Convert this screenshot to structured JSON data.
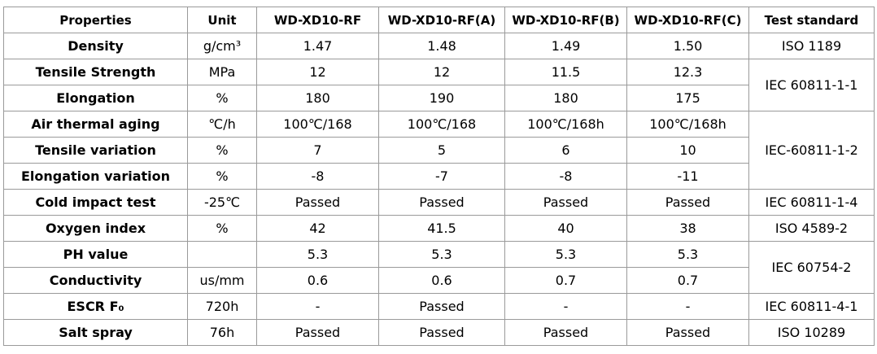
{
  "table": {
    "header": [
      "Properties",
      "Unit",
      "WD-XD10-RF",
      "WD-XD10-RF(A)",
      "WD-XD10-RF(B)",
      "WD-XD10-RF(C)",
      "Test standard"
    ],
    "rows": [
      [
        "Density",
        "g/cm³",
        "1.47",
        "1.48",
        "1.49",
        "1.50",
        "ISO 1189"
      ],
      [
        "Tensile Strength",
        "MPa",
        "12",
        "12",
        "11.5",
        "12.3",
        "IEC 60811-1-1"
      ],
      [
        "Elongation",
        "%",
        "180",
        "190",
        "180",
        "175",
        null
      ],
      [
        "Air thermal aging",
        "℃/h",
        "100℃/168",
        "100℃/168",
        "100℃/168h",
        "100℃/168h",
        "IEC-60811-1-2"
      ],
      [
        "Tensile variation",
        "%",
        "7",
        "5",
        "6",
        "10",
        null
      ],
      [
        "Elongation variation",
        "%",
        "-8",
        "-7",
        "-8",
        "-11",
        null
      ],
      [
        "Cold impact test",
        "-25℃",
        "Passed",
        "Passed",
        "Passed",
        "Passed",
        "IEC 60811-1-4"
      ],
      [
        "Oxygen index",
        "%",
        "42",
        "41.5",
        "40",
        "38",
        "ISO 4589-2"
      ],
      [
        "PH value",
        null,
        "5.3",
        "5.3",
        "5.3",
        "5.3",
        "IEC 60754-2"
      ],
      [
        "Conductivity",
        "us/mm",
        "0.6",
        "0.6",
        "0.7",
        "0.7",
        null
      ],
      [
        "ESCR F₀",
        "720h",
        "-",
        "Passed",
        "-",
        "-",
        "IEC 60811-4-1"
      ],
      [
        "Salt spray",
        "76h",
        "Passed",
        "Passed",
        "Passed",
        "Passed",
        "ISO 10289"
      ]
    ]
  }
}
